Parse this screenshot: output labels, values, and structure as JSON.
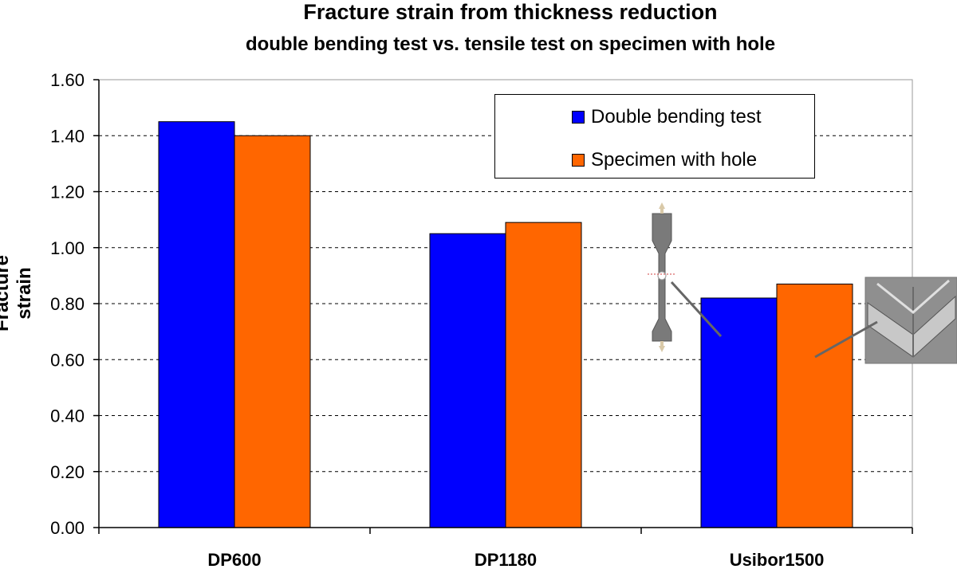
{
  "chart_data": {
    "type": "bar",
    "title": "Fracture strain from thickness reduction",
    "subtitle": "double bending test vs. tensile test on specimen with hole",
    "ylabel": "Fracture strain",
    "xlabel": "",
    "categories": [
      "DP600",
      "DP1180",
      "Usibor1500"
    ],
    "series": [
      {
        "name": "Double bending test",
        "values": [
          1.45,
          1.05,
          0.82
        ],
        "color": "#0000ff"
      },
      {
        "name": "Specimen with hole",
        "values": [
          1.4,
          1.09,
          0.87
        ],
        "color": "#ff6600"
      }
    ],
    "ylim": [
      0,
      1.6
    ],
    "yticks": [
      "0.00",
      "0.20",
      "0.40",
      "0.60",
      "0.80",
      "1.00",
      "1.20",
      "1.40",
      "1.60"
    ],
    "grid": "horizontal dashed",
    "legend_position": "top-right"
  }
}
